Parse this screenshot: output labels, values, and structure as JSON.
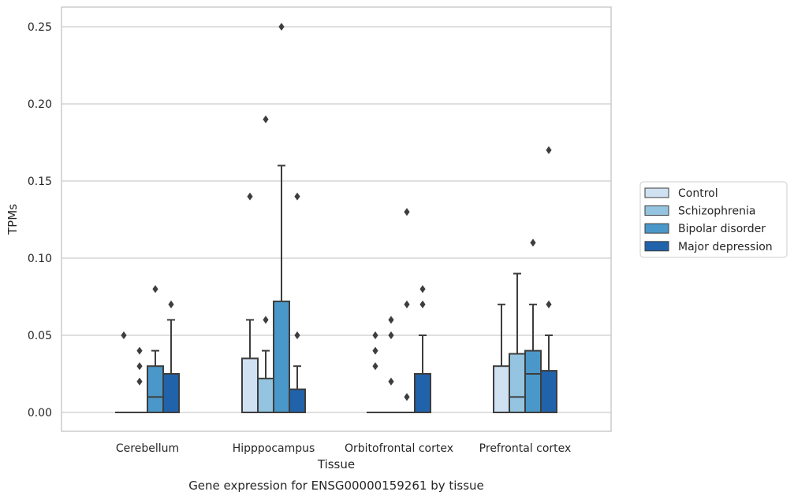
{
  "caption": "Gene expression for ENSG00000159261 by tissue",
  "chart_data": {
    "type": "box",
    "xlabel": "Tissue",
    "ylabel": "TPMs",
    "ylim": [
      -0.012,
      0.263
    ],
    "yticks": [
      "0.00",
      "0.05",
      "0.10",
      "0.15",
      "0.20",
      "0.25"
    ],
    "ytick_values": [
      0,
      0.05,
      0.1,
      0.15,
      0.2,
      0.25
    ],
    "grid": "horizontal",
    "legend_position": "right",
    "categories": [
      "Cerebellum",
      "Hipppocampus",
      "Orbitofrontal cortex",
      "Prefrontal cortex"
    ],
    "series": [
      {
        "name": "Control",
        "color": "#d0e1f2",
        "boxes": [
          {
            "q1": 0,
            "median": 0,
            "q3": 0,
            "whisker_low": 0,
            "whisker_high": 0,
            "outliers": [
              0.05
            ]
          },
          {
            "q1": 0,
            "median": 0,
            "q3": 0.035,
            "whisker_low": 0,
            "whisker_high": 0.06,
            "outliers": [
              0.14
            ]
          },
          {
            "q1": 0,
            "median": 0,
            "q3": 0,
            "whisker_low": 0,
            "whisker_high": 0,
            "outliers": [
              0.03,
              0.04,
              0.05
            ]
          },
          {
            "q1": 0,
            "median": 0,
            "q3": 0.03,
            "whisker_low": 0,
            "whisker_high": 0.07,
            "outliers": []
          }
        ]
      },
      {
        "name": "Schizophrenia",
        "color": "#94c4df",
        "boxes": [
          {
            "q1": 0,
            "median": 0,
            "q3": 0,
            "whisker_low": 0,
            "whisker_high": 0,
            "outliers": [
              0.02,
              0.03,
              0.04
            ]
          },
          {
            "q1": 0,
            "median": 0,
            "q3": 0.022,
            "whisker_low": 0,
            "whisker_high": 0.04,
            "outliers": [
              0.06,
              0.19
            ]
          },
          {
            "q1": 0,
            "median": 0,
            "q3": 0,
            "whisker_low": 0,
            "whisker_high": 0,
            "outliers": [
              0.02,
              0.05,
              0.06
            ]
          },
          {
            "q1": 0,
            "median": 0.01,
            "q3": 0.038,
            "whisker_low": 0,
            "whisker_high": 0.09,
            "outliers": []
          }
        ]
      },
      {
        "name": "Bipolar disorder",
        "color": "#4a98c9",
        "boxes": [
          {
            "q1": 0,
            "median": 0.01,
            "q3": 0.03,
            "whisker_low": 0,
            "whisker_high": 0.04,
            "outliers": [
              0.08
            ]
          },
          {
            "q1": 0,
            "median": 0,
            "q3": 0.072,
            "whisker_low": 0,
            "whisker_high": 0.16,
            "outliers": [
              0.25
            ]
          },
          {
            "q1": 0,
            "median": 0,
            "q3": 0,
            "whisker_low": 0,
            "whisker_high": 0,
            "outliers": [
              0.01,
              0.07,
              0.13
            ]
          },
          {
            "q1": 0,
            "median": 0.025,
            "q3": 0.04,
            "whisker_low": 0,
            "whisker_high": 0.07,
            "outliers": [
              0.11
            ]
          }
        ]
      },
      {
        "name": "Major depression",
        "color": "#2163aa",
        "boxes": [
          {
            "q1": 0,
            "median": 0,
            "q3": 0.025,
            "whisker_low": 0,
            "whisker_high": 0.06,
            "outliers": [
              0.07
            ]
          },
          {
            "q1": 0,
            "median": 0,
            "q3": 0.015,
            "whisker_low": 0,
            "whisker_high": 0.03,
            "outliers": [
              0.05,
              0.14
            ]
          },
          {
            "q1": 0,
            "median": 0,
            "q3": 0.025,
            "whisker_low": 0,
            "whisker_high": 0.05,
            "outliers": [
              0.07,
              0.08
            ]
          },
          {
            "q1": 0,
            "median": 0,
            "q3": 0.027,
            "whisker_low": 0,
            "whisker_high": 0.05,
            "outliers": [
              0.07,
              0.17
            ]
          }
        ]
      }
    ]
  }
}
